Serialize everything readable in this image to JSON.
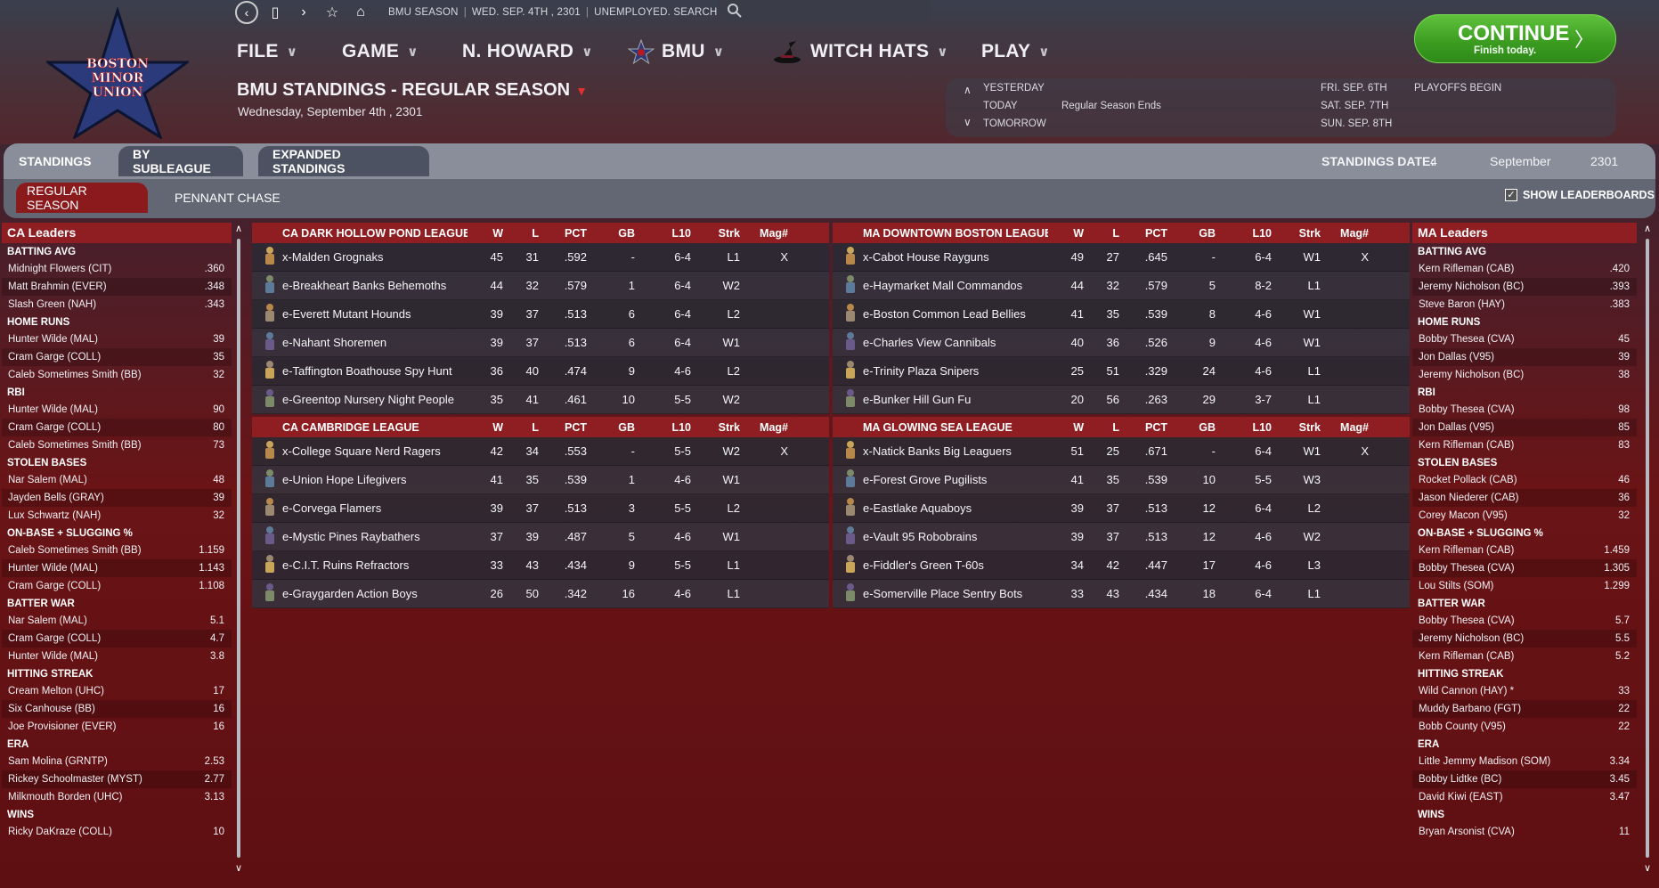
{
  "logo_text": [
    "BOSTON",
    "MINOR",
    "UNION"
  ],
  "topbar": {
    "season": "BMU SEASON",
    "date": "WED. SEP. 4TH , 2301",
    "job": "UNEMPLOYED. SEARCH JOBS..."
  },
  "menu": [
    {
      "label": "FILE"
    },
    {
      "label": "GAME"
    },
    {
      "label": "N. HOWARD"
    },
    {
      "label": "BMU"
    },
    {
      "label": "WITCH HATS"
    },
    {
      "label": "PLAY"
    }
  ],
  "continue": {
    "label": "CONTINUE",
    "sub": "Finish today."
  },
  "page": {
    "title": "BMU STANDINGS - REGULAR SEASON",
    "date": "Wednesday, September 4th , 2301"
  },
  "calendar": {
    "yesterday": "YESTERDAY",
    "today": "TODAY",
    "today_event": "Regular Season Ends",
    "tomorrow": "TOMORROW",
    "d1": "FRI. SEP. 6TH",
    "d1_event": "PLAYOFFS BEGIN",
    "d2": "SAT. SEP. 7TH",
    "d3": "SUN. SEP. 8TH"
  },
  "tabs": [
    "STANDINGS",
    "BY SUBLEAGUE",
    "EXPANDED STANDINGS"
  ],
  "subtabs": [
    "REGULAR SEASON",
    "PENNANT CHASE"
  ],
  "standings_date": {
    "label": "STANDINGS DATE:",
    "day": "4",
    "month": "September",
    "year": "2301"
  },
  "show_leaderboards": "SHOW LEADERBOARDS",
  "columns": [
    "W",
    "L",
    "PCT",
    "GB",
    "L10",
    "Strk",
    "Mag#"
  ],
  "left_leaders": {
    "title": "CA Leaders",
    "cats": [
      {
        "name": "BATTING AVG",
        "rows": [
          [
            "Midnight Flowers (CIT)",
            ".360"
          ],
          [
            "Matt Brahmin (EVER)",
            ".348"
          ],
          [
            "Slash Green (NAH)",
            ".343"
          ]
        ]
      },
      {
        "name": "HOME RUNS",
        "rows": [
          [
            "Hunter Wilde (MAL)",
            "39"
          ],
          [
            "Cram Garge (COLL)",
            "35"
          ],
          [
            "Caleb Sometimes Smith (BB)",
            "32"
          ]
        ]
      },
      {
        "name": "RBI",
        "rows": [
          [
            "Hunter Wilde (MAL)",
            "90"
          ],
          [
            "Cram Garge (COLL)",
            "80"
          ],
          [
            "Caleb Sometimes Smith (BB)",
            "73"
          ]
        ]
      },
      {
        "name": "STOLEN BASES",
        "rows": [
          [
            "Nar Salem (MAL)",
            "48"
          ],
          [
            "Jayden Bells (GRAY)",
            "39"
          ],
          [
            "Lux Schwartz (NAH)",
            "32"
          ]
        ]
      },
      {
        "name": "ON-BASE + SLUGGING %",
        "rows": [
          [
            "Caleb Sometimes Smith (BB)",
            "1.159"
          ],
          [
            "Hunter Wilde (MAL)",
            "1.143"
          ],
          [
            "Cram Garge (COLL)",
            "1.108"
          ]
        ]
      },
      {
        "name": "BATTER WAR",
        "rows": [
          [
            "Nar Salem (MAL)",
            "5.1"
          ],
          [
            "Cram Garge (COLL)",
            "4.7"
          ],
          [
            "Hunter Wilde (MAL)",
            "3.8"
          ]
        ]
      },
      {
        "name": "HITTING STREAK",
        "rows": [
          [
            "Cream Melton (UHC)",
            "17"
          ],
          [
            "Six Canhouse (BB)",
            "16"
          ],
          [
            "Joe Provisioner (EVER)",
            "16"
          ]
        ]
      },
      {
        "name": "ERA",
        "rows": [
          [
            "Sam Molina (GRNTP)",
            "2.53"
          ],
          [
            "Rickey Schoolmaster (MYST)",
            "2.77"
          ],
          [
            "Milkmouth Borden (UHC)",
            "3.13"
          ]
        ]
      },
      {
        "name": "WINS",
        "rows": [
          [
            "Ricky DaKraze (COLL)",
            "10"
          ]
        ]
      }
    ]
  },
  "right_leaders": {
    "title": "MA Leaders",
    "cats": [
      {
        "name": "BATTING AVG",
        "rows": [
          [
            "Kern Rifleman (CAB)",
            ".420"
          ],
          [
            "Jeremy Nicholson (BC)",
            ".393"
          ],
          [
            "Steve Baron (HAY)",
            ".383"
          ]
        ]
      },
      {
        "name": "HOME RUNS",
        "rows": [
          [
            "Bobby Thesea (CVA)",
            "45"
          ],
          [
            "Jon Dallas (V95)",
            "39"
          ],
          [
            "Jeremy Nicholson (BC)",
            "38"
          ]
        ]
      },
      {
        "name": "RBI",
        "rows": [
          [
            "Bobby Thesea (CVA)",
            "98"
          ],
          [
            "Jon Dallas (V95)",
            "85"
          ],
          [
            "Kern Rifleman (CAB)",
            "83"
          ]
        ]
      },
      {
        "name": "STOLEN BASES",
        "rows": [
          [
            "Rocket Pollack (CAB)",
            "46"
          ],
          [
            "Jason Niederer (CAB)",
            "36"
          ],
          [
            "Corey Macon (V95)",
            "32"
          ]
        ]
      },
      {
        "name": "ON-BASE + SLUGGING %",
        "rows": [
          [
            "Kern Rifleman (CAB)",
            "1.459"
          ],
          [
            "Bobby Thesea (CVA)",
            "1.305"
          ],
          [
            "Lou Stilts (SOM)",
            "1.299"
          ]
        ]
      },
      {
        "name": "BATTER WAR",
        "rows": [
          [
            "Bobby Thesea (CVA)",
            "5.7"
          ],
          [
            "Jeremy Nicholson (BC)",
            "5.5"
          ],
          [
            "Kern Rifleman (CAB)",
            "5.2"
          ]
        ]
      },
      {
        "name": "HITTING STREAK",
        "rows": [
          [
            "Wild Cannon (HAY) *",
            "33"
          ],
          [
            "Muddy Barbano (FGT)",
            "22"
          ],
          [
            "Bobb County (V95)",
            "22"
          ]
        ]
      },
      {
        "name": "ERA",
        "rows": [
          [
            "Little Jemmy Madison (SOM)",
            "3.34"
          ],
          [
            "Bobby Lidtke (BC)",
            "3.45"
          ],
          [
            "David Kiwi (EAST)",
            "3.47"
          ]
        ]
      },
      {
        "name": "WINS",
        "rows": [
          [
            "Bryan Arsonist (CVA)",
            "11"
          ]
        ]
      }
    ]
  },
  "leagues": [
    {
      "name": "CA DARK HOLLOW POND LEAGUE",
      "teams": [
        [
          "x-Malden Grognaks",
          "45",
          "31",
          ".592",
          "-",
          "6-4",
          "L1",
          "X"
        ],
        [
          "e-Breakheart Banks Behemoths",
          "44",
          "32",
          ".579",
          "1",
          "6-4",
          "W2",
          ""
        ],
        [
          "e-Everett Mutant Hounds",
          "39",
          "37",
          ".513",
          "6",
          "6-4",
          "L2",
          ""
        ],
        [
          "e-Nahant Shoremen",
          "39",
          "37",
          ".513",
          "6",
          "6-4",
          "W1",
          ""
        ],
        [
          "e-Taffington Boathouse Spy Hunt",
          "36",
          "40",
          ".474",
          "9",
          "4-6",
          "L2",
          ""
        ],
        [
          "e-Greentop Nursery Night People",
          "35",
          "41",
          ".461",
          "10",
          "5-5",
          "W2",
          ""
        ]
      ]
    },
    {
      "name": "MA DOWNTOWN BOSTON LEAGUE",
      "teams": [
        [
          "x-Cabot House Rayguns",
          "49",
          "27",
          ".645",
          "-",
          "6-4",
          "W1",
          "X"
        ],
        [
          "e-Haymarket Mall Commandos",
          "44",
          "32",
          ".579",
          "5",
          "8-2",
          "L1",
          ""
        ],
        [
          "e-Boston Common Lead Bellies",
          "41",
          "35",
          ".539",
          "8",
          "4-6",
          "W1",
          ""
        ],
        [
          "e-Charles View Cannibals",
          "40",
          "36",
          ".526",
          "9",
          "4-6",
          "W1",
          ""
        ],
        [
          "e-Trinity Plaza Snipers",
          "25",
          "51",
          ".329",
          "24",
          "4-6",
          "L1",
          ""
        ],
        [
          "e-Bunker Hill Gun Fu",
          "20",
          "56",
          ".263",
          "29",
          "3-7",
          "L1",
          ""
        ]
      ]
    },
    {
      "name": "CA CAMBRIDGE LEAGUE",
      "teams": [
        [
          "x-College Square Nerd Ragers",
          "42",
          "34",
          ".553",
          "-",
          "5-5",
          "W2",
          "X"
        ],
        [
          "e-Union Hope Lifegivers",
          "41",
          "35",
          ".539",
          "1",
          "4-6",
          "W1",
          ""
        ],
        [
          "e-Corvega Flamers",
          "39",
          "37",
          ".513",
          "3",
          "5-5",
          "L2",
          ""
        ],
        [
          "e-Mystic Pines Raybathers",
          "37",
          "39",
          ".487",
          "5",
          "4-6",
          "W1",
          ""
        ],
        [
          "e-C.I.T. Ruins Refractors",
          "33",
          "43",
          ".434",
          "9",
          "5-5",
          "L1",
          ""
        ],
        [
          "e-Graygarden Action Boys",
          "26",
          "50",
          ".342",
          "16",
          "4-6",
          "L1",
          ""
        ]
      ]
    },
    {
      "name": "MA GLOWING SEA LEAGUE",
      "teams": [
        [
          "x-Natick Banks Big Leaguers",
          "51",
          "25",
          ".671",
          "-",
          "6-4",
          "W1",
          "X"
        ],
        [
          "e-Forest Grove Pugilists",
          "41",
          "35",
          ".539",
          "10",
          "5-5",
          "W3",
          ""
        ],
        [
          "e-Eastlake Aquaboys",
          "39",
          "37",
          ".513",
          "12",
          "6-4",
          "L2",
          ""
        ],
        [
          "e-Vault 95 Robobrains",
          "39",
          "37",
          ".513",
          "12",
          "4-6",
          "W2",
          ""
        ],
        [
          "e-Fiddler's Green T-60s",
          "34",
          "42",
          ".447",
          "17",
          "4-6",
          "L3",
          ""
        ],
        [
          "e-Somerville Place Sentry Bots",
          "33",
          "43",
          ".434",
          "18",
          "6-4",
          "L1",
          ""
        ]
      ]
    }
  ],
  "colors": {
    "accent_red": "#8e1e22",
    "continue_green": "#3a9b20",
    "title_chevron": "#e0312f"
  }
}
